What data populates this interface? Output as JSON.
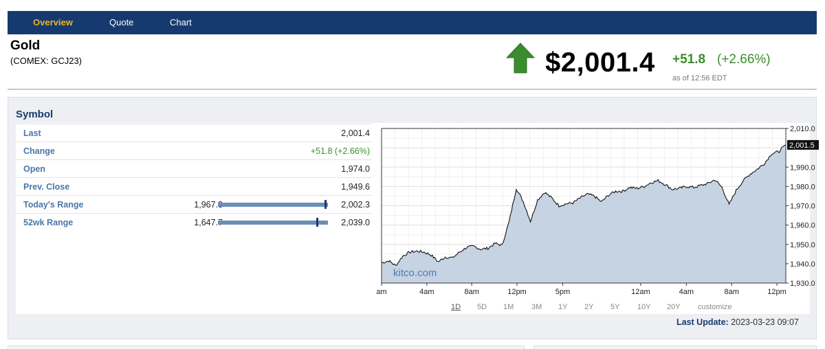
{
  "nav": {
    "items": [
      {
        "label": "Overview",
        "active": true
      },
      {
        "label": "Quote",
        "active": false
      },
      {
        "label": "Chart",
        "active": false
      }
    ]
  },
  "header": {
    "title": "Gold",
    "subtitle": "(COMEX: GCJ23)",
    "price": "$2,001.4",
    "change": "+51.8",
    "change_pct": "(+2.66%)",
    "as_of": "as of 12:56 EDT",
    "arrow_icon": "up-arrow-icon",
    "colors": {
      "accent": "#163a70",
      "positive": "#3a8d2c",
      "active_nav": "#f0b323",
      "arrow": "#3a8d2c"
    }
  },
  "symbol_panel": {
    "title": "Symbol",
    "rows": [
      {
        "label": "Last",
        "value": "2,001.4"
      },
      {
        "label": "Change",
        "value": "+51.8 (+2.66%)"
      },
      {
        "label": "Open",
        "value": "1,974.0"
      },
      {
        "label": "Prev. Close",
        "value": "1,949.6"
      }
    ],
    "ranges": [
      {
        "label": "Today's Range",
        "low": "1,967.3",
        "high": "2,002.3",
        "position": 0.98
      },
      {
        "label": "52wk Range",
        "low": "1,647.7",
        "high": "2,039.0",
        "position": 0.9
      }
    ]
  },
  "chart": {
    "watermark": "kitco.com",
    "periods": [
      "1D",
      "5D",
      "1M",
      "3M",
      "1Y",
      "2Y",
      "5Y",
      "10Y",
      "20Y",
      "customize"
    ],
    "selected_period": "1D",
    "last_update_label": "Last Update:",
    "last_update_value": "2023-03-23 09:07"
  },
  "chart_data": {
    "type": "area",
    "title": "",
    "xlabel": "",
    "ylabel": "",
    "ylim": [
      1930.0,
      2010.0
    ],
    "y_ticks": [
      "2,010.0",
      "1,990.0",
      "1,980.0",
      "1,970.0",
      "1,960.0",
      "1,950.0",
      "1,940.0",
      "1,930.0"
    ],
    "x_ticks": [
      "am",
      "4am",
      "8am",
      "12pm",
      "5pm",
      "12am",
      "4am",
      "8am",
      "12pm"
    ],
    "last_value_label": "2,001.5",
    "grid": true,
    "series": [
      {
        "values": [
          1940.5,
          1941.5,
          1939.0,
          1944.0,
          1946.0,
          1946.5,
          1946.0,
          1944.5,
          1941.0,
          1943.5,
          1943.0,
          1946.0,
          1948.5,
          1949.0,
          1947.5,
          1948.0,
          1950.5,
          1949.5,
          1962.0,
          1979.0,
          1972.0,
          1962.0,
          1973.0,
          1977.0,
          1974.0,
          1970.0,
          1971.0,
          1971.5,
          1974.0,
          1976.0,
          1975.0,
          1972.0,
          1975.5,
          1977.5,
          1977.5,
          1979.5,
          1979.0,
          1980.0,
          1982.0,
          1983.0,
          1981.0,
          1978.5,
          1979.0,
          1980.0,
          1979.5,
          1980.5,
          1981.5,
          1983.5,
          1979.5,
          1970.5,
          1978.0,
          1983.0,
          1986.5,
          1989.0,
          1992.0,
          1997.0,
          1998.0,
          2001.5
        ]
      }
    ]
  }
}
